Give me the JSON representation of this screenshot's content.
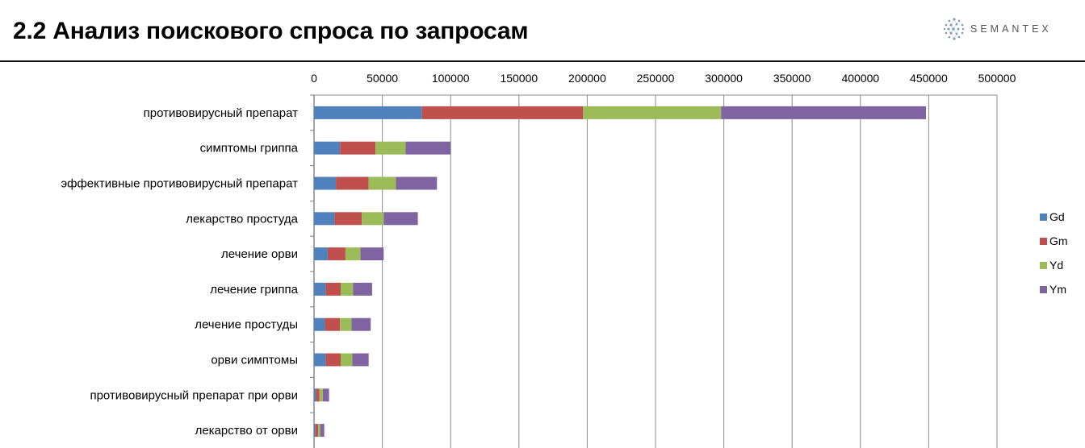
{
  "header": {
    "title": "2.2 Анализ поискового спроса по запросам",
    "logo_text": "SEMANTEX"
  },
  "chart_data": {
    "type": "bar",
    "orientation": "horizontal",
    "stacked": true,
    "categories": [
      "противовирусный препарат",
      "симптомы гриппа",
      "эффективные противовирусный препарат",
      "лекарство простуда",
      "лечение орви",
      "лечение гриппа",
      "лечение простуды",
      "орви симптомы",
      "противовирусный препарат при орви",
      "лекарство от орви"
    ],
    "series": [
      {
        "name": "Gd",
        "color": "#4f81bd",
        "values": [
          79000,
          19000,
          16000,
          15000,
          10000,
          8500,
          8000,
          8500,
          1500,
          1000
        ]
      },
      {
        "name": "Gm",
        "color": "#c0504d",
        "values": [
          118000,
          26000,
          24000,
          20000,
          13000,
          11000,
          11000,
          11000,
          2500,
          2000
        ]
      },
      {
        "name": "Yd",
        "color": "#9bbb59",
        "values": [
          101000,
          22000,
          20000,
          16000,
          11000,
          9000,
          8500,
          8500,
          2500,
          1500
        ]
      },
      {
        "name": "Ym",
        "color": "#8064a2",
        "values": [
          150000,
          33000,
          30000,
          25000,
          17000,
          14000,
          14000,
          12000,
          4500,
          3000
        ]
      }
    ],
    "xlim": [
      0,
      500000
    ],
    "x_ticks": [
      "0",
      "50000",
      "100000",
      "150000",
      "200000",
      "250000",
      "300000",
      "350000",
      "400000",
      "450000",
      "500000"
    ],
    "grid": "vertical",
    "axis_position": "top",
    "legend_position": "right",
    "title": "",
    "xlabel": "",
    "ylabel": ""
  }
}
